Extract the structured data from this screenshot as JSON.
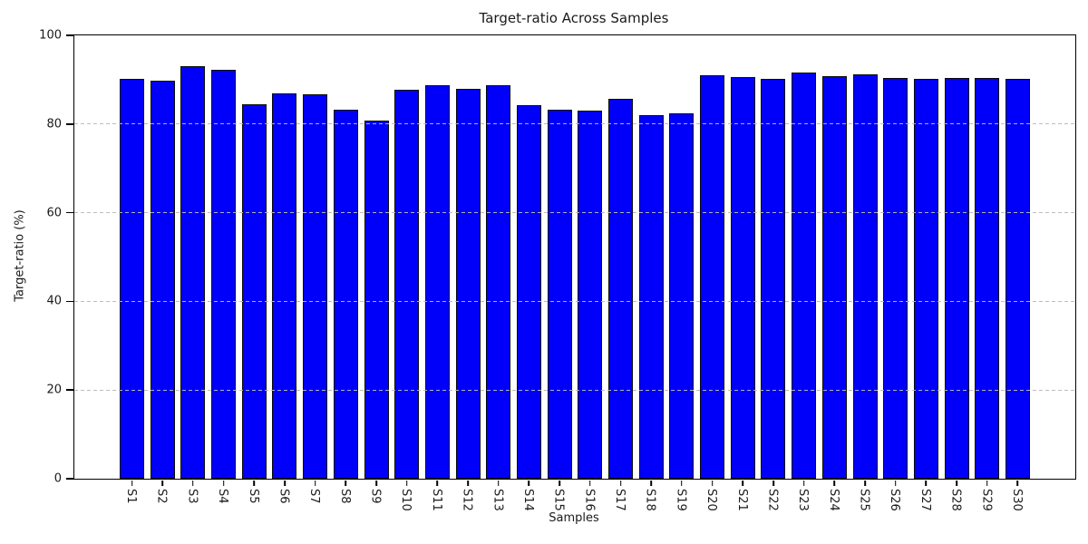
{
  "chart_data": {
    "type": "bar",
    "title": "Target-ratio Across Samples",
    "xlabel": "Samples",
    "ylabel": "Target-ratio (%)",
    "categories": [
      "S1",
      "S2",
      "S3",
      "S4",
      "S5",
      "S6",
      "S7",
      "S8",
      "S9",
      "S10",
      "S11",
      "S12",
      "S13",
      "S14",
      "S15",
      "S16",
      "S17",
      "S18",
      "S19",
      "S20",
      "S21",
      "S22",
      "S23",
      "S24",
      "S25",
      "S26",
      "S27",
      "S28",
      "S29",
      "S30"
    ],
    "values": [
      90.1,
      89.8,
      93.1,
      92.3,
      84.4,
      86.9,
      86.8,
      83.2,
      80.7,
      87.8,
      88.8,
      87.9,
      88.8,
      84.3,
      83.3,
      83.1,
      85.7,
      82.1,
      82.5,
      91.0,
      90.6,
      90.2,
      91.6,
      90.7,
      91.3,
      90.3,
      90.2,
      90.3,
      90.3,
      90.2
    ],
    "ylim": [
      0,
      100
    ],
    "yticks": [
      0,
      20,
      40,
      60,
      80,
      100
    ],
    "grid": "dashed horizontal",
    "legend": "none",
    "bar_color": "#0000fa",
    "bar_edge_color": "#0a0a0a",
    "grid_color": "#b9b9b9",
    "xtick_label_rotation": "vertical"
  }
}
